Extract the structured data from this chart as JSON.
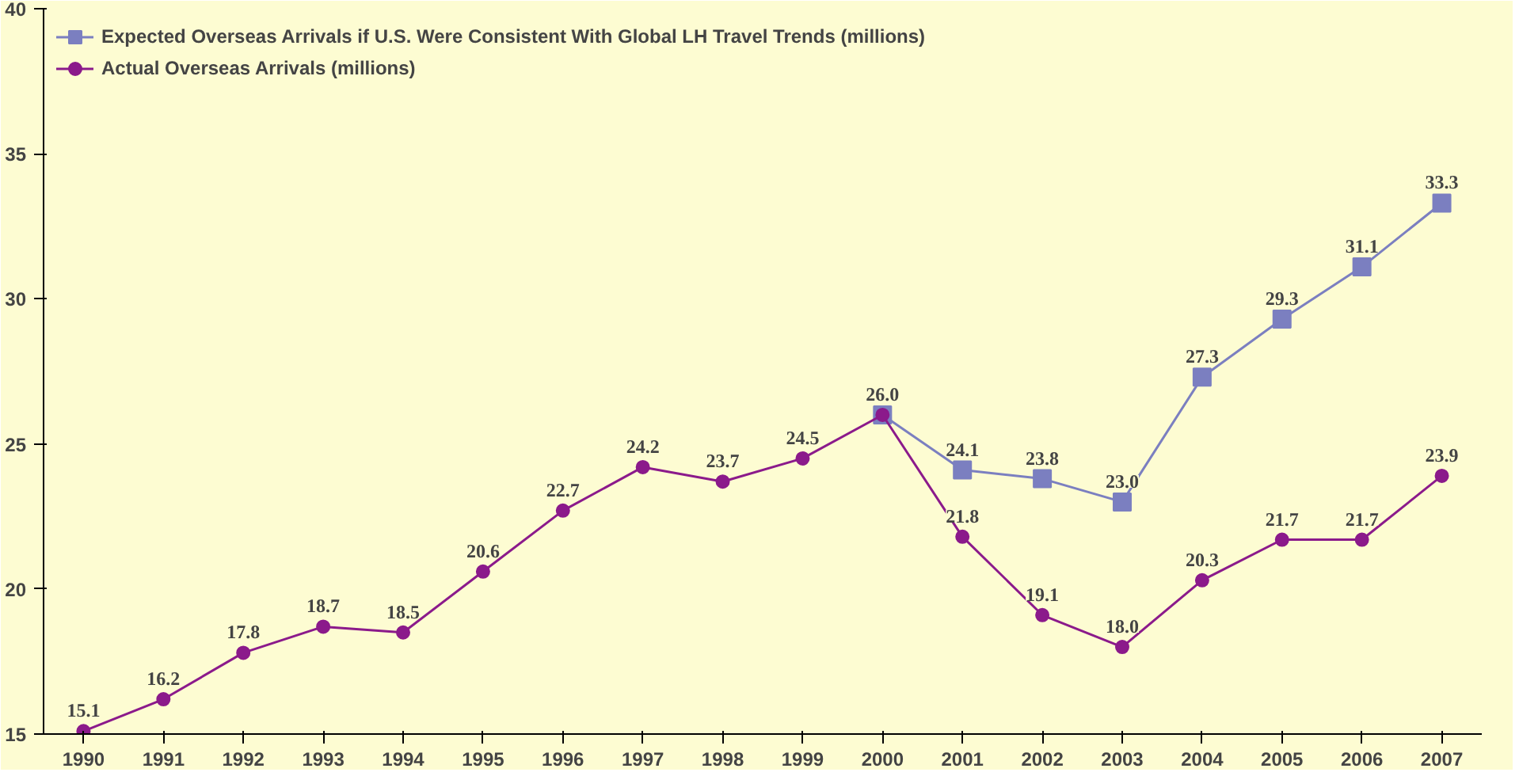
{
  "chart_data": {
    "type": "line",
    "categories": [
      "1990",
      "1991",
      "1992",
      "1993",
      "1994",
      "1995",
      "1996",
      "1997",
      "1998",
      "1999",
      "2000",
      "2001",
      "2002",
      "2003",
      "2004",
      "2005",
      "2006",
      "2007"
    ],
    "ylim": [
      15,
      40
    ],
    "yticks": [
      15,
      20,
      25,
      30,
      35,
      40
    ],
    "grid": false,
    "legend": "top left",
    "series": [
      {
        "name": "Expected Overseas Arrivals if U.S. Were Consistent With Global LH Travel Trends (millions)",
        "color": "#7b7fc0",
        "marker": "square",
        "values": [
          null,
          null,
          null,
          null,
          null,
          null,
          null,
          null,
          null,
          null,
          26.0,
          24.1,
          23.8,
          23.0,
          27.3,
          29.3,
          31.1,
          33.3
        ],
        "value_labels": [
          null,
          null,
          null,
          null,
          null,
          null,
          null,
          null,
          null,
          null,
          null,
          "24.1",
          "23.8",
          "23.0",
          "27.3",
          "29.3",
          "31.1",
          "33.3"
        ]
      },
      {
        "name": "Actual Overseas Arrivals (millions)",
        "color": "#8b1a8b",
        "marker": "circle",
        "values": [
          15.1,
          16.2,
          17.8,
          18.7,
          18.5,
          20.6,
          22.7,
          24.2,
          23.7,
          24.5,
          26.0,
          21.8,
          19.1,
          18.0,
          20.3,
          21.7,
          21.7,
          23.9
        ],
        "value_labels": [
          "15.1",
          "16.2",
          "17.8",
          "18.7",
          "18.5",
          "20.6",
          "22.7",
          "24.2",
          "23.7",
          "24.5",
          "26.0",
          "21.8",
          "19.1",
          "18.0",
          "20.3",
          "21.7",
          "21.7",
          "23.9"
        ]
      }
    ]
  }
}
